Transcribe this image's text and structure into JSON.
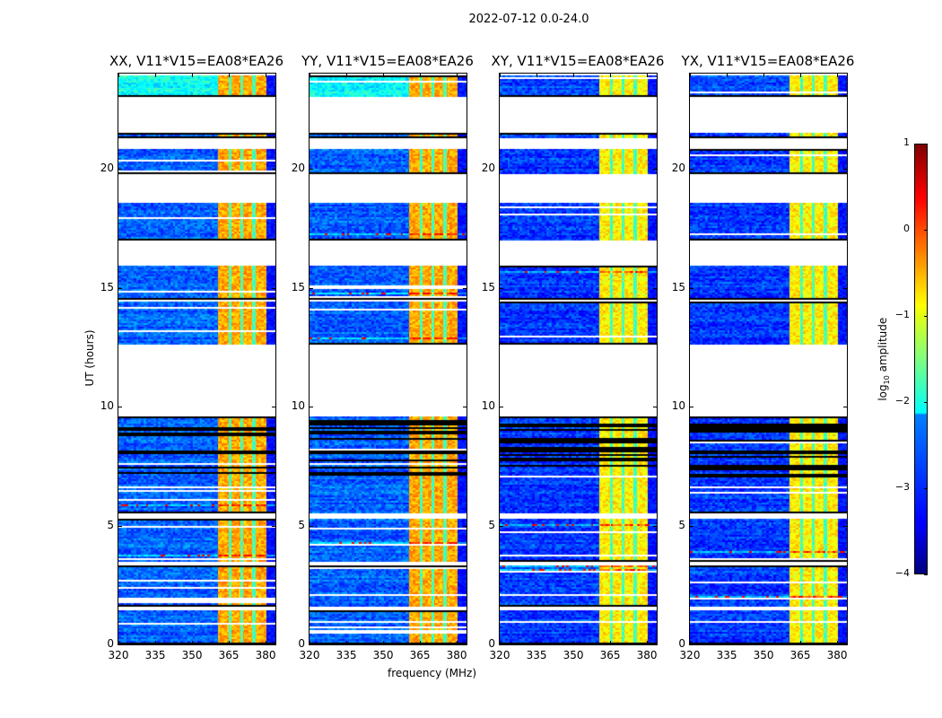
{
  "chart_data": {
    "type": "heatmap",
    "title": "2022-07-12 0.0-24.0",
    "xlabel": "frequency (MHz)",
    "ylabel": "UT (hours)",
    "xlim": [
      320,
      384
    ],
    "ylim": [
      0,
      24
    ],
    "xticks": [
      "320",
      "335",
      "350",
      "365",
      "380"
    ],
    "yticks": [
      "0",
      "5",
      "10",
      "15",
      "20"
    ],
    "xtick_values": [
      320,
      335,
      350,
      365,
      380
    ],
    "ytick_values": [
      0,
      5,
      10,
      15,
      20
    ],
    "colorbar": {
      "label_main": "log",
      "label_sub": "10",
      "label_rest": " amplitude",
      "range": [
        -4,
        1
      ],
      "ticks": [
        "1",
        "0",
        "−1",
        "−2",
        "−3",
        "−4"
      ],
      "tick_values": [
        1,
        0,
        -1,
        -2,
        -3,
        -4
      ],
      "colormap": "jet"
    },
    "data_segments_hours": [
      [
        0,
        1.45
      ],
      [
        1.6,
        3.3
      ],
      [
        3.5,
        5.3
      ],
      [
        5.5,
        9.6
      ],
      [
        12.6,
        14.4
      ],
      [
        14.5,
        15.9
      ],
      [
        17.0,
        18.6
      ],
      [
        19.8,
        20.8
      ],
      [
        21.3,
        21.5
      ],
      [
        23.0,
        23.9
      ]
    ],
    "dense_flagged_hours": [
      7.0,
      9.6
    ],
    "band_mhz": [
      360.4,
      380.0
    ],
    "band_gaps_mhz": [
      365.3,
      370.0,
      375.0
    ],
    "panels": [
      {
        "title": "XX, V11*V15=EA08*EA26",
        "background_log_amp": -2.9,
        "band_log_amp": -0.45,
        "top_segment_log_amp": -2.1
      },
      {
        "title": "YY, V11*V15=EA08*EA26",
        "background_log_amp": -2.9,
        "band_log_amp": -0.45,
        "top_segment_log_amp": -2.1
      },
      {
        "title": "XY, V11*V15=EA08*EA26",
        "background_log_amp": -3.1,
        "band_log_amp": -0.8,
        "top_segment_log_amp": -3.0
      },
      {
        "title": "YX, V11*V15=EA08*EA26",
        "background_log_amp": -3.1,
        "band_log_amp": -0.8,
        "top_segment_log_amp": -3.0
      }
    ]
  }
}
